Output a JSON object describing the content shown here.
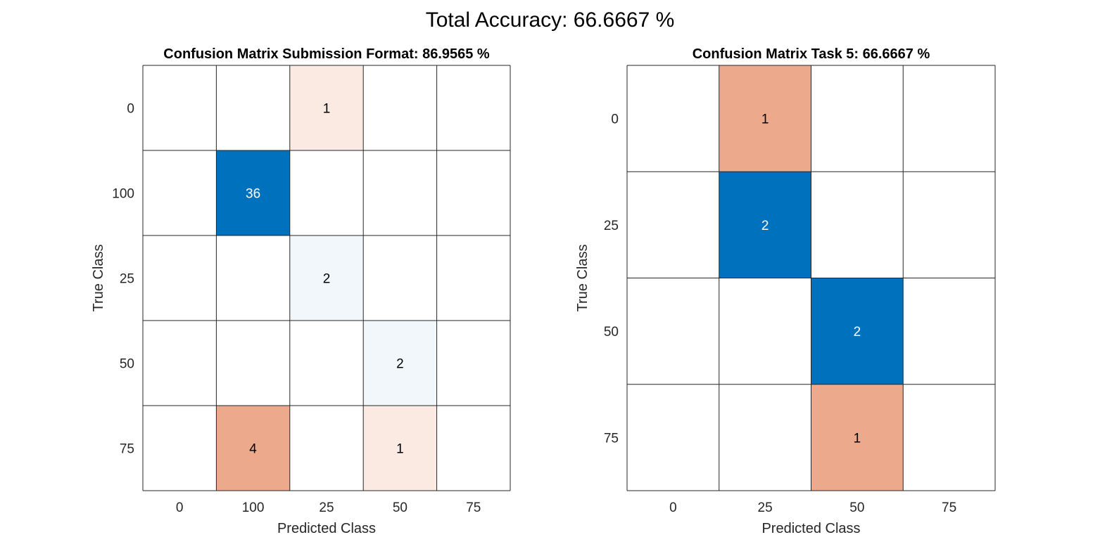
{
  "suptitle": "Total Accuracy: 66.6667 %",
  "colors": {
    "correct": "#0072BD",
    "incorrect": "#D95319",
    "grid": "#262626",
    "text_dark": "#000000",
    "text_light": "#ffffff"
  },
  "chart_data": [
    {
      "type": "heatmap",
      "title": "Confusion Matrix Submission Format: 86.9565 %",
      "xlabel": "Predicted Class",
      "ylabel": "True Class",
      "classes": [
        "0",
        "100",
        "25",
        "50",
        "75"
      ],
      "matrix": [
        [
          0,
          0,
          1,
          0,
          0
        ],
        [
          0,
          36,
          0,
          0,
          0
        ],
        [
          0,
          0,
          2,
          0,
          0
        ],
        [
          0,
          0,
          0,
          2,
          0
        ],
        [
          0,
          4,
          0,
          1,
          0
        ]
      ],
      "grid": true
    },
    {
      "type": "heatmap",
      "title": "Confusion Matrix Task 5: 66.6667 %",
      "xlabel": "Predicted Class",
      "ylabel": "True Class",
      "classes": [
        "0",
        "25",
        "50",
        "75"
      ],
      "matrix": [
        [
          0,
          1,
          0,
          0
        ],
        [
          0,
          2,
          0,
          0
        ],
        [
          0,
          0,
          2,
          0
        ],
        [
          0,
          0,
          1,
          0
        ]
      ],
      "grid": true
    }
  ]
}
